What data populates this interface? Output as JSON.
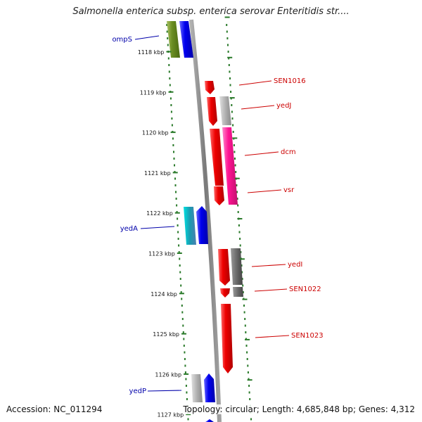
{
  "title": "Salmonella enterica subsp. enterica serovar Enteritidis str....",
  "footer": {
    "accession": "Accession: NC_011294",
    "summary": "Topology: circular; Length: 4,685,848 bp; Genes: 4,312"
  },
  "ticks": [
    "1118 kbp",
    "1119 kbp",
    "1120 kbp",
    "1121 kbp",
    "1122 kbp",
    "1123 kbp",
    "1124 kbp",
    "1125 kbp",
    "1126 kbp",
    "1127 kbp"
  ],
  "genes": {
    "ompS": "ompS",
    "SEN1016": "SEN1016",
    "yedJ": "yedJ",
    "dcm": "dcm",
    "vsr": "vsr",
    "yedA": "yedA",
    "yedI": "yedI",
    "SEN1022": "SEN1022",
    "SEN1023": "SEN1023",
    "yedP": "yedP"
  },
  "colors": {
    "forward_label": "#0000aa",
    "reverse_label": "#cc0000",
    "dots": "#2a7a2a",
    "backbone": "#888888"
  }
}
